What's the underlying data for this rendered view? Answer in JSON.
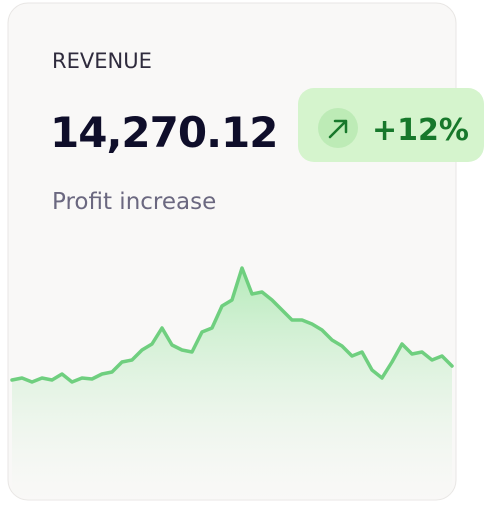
{
  "card": {
    "label": "REVENUE",
    "amount": "14,270.12",
    "subtitle": "Profit increase",
    "badge": "+12%",
    "sparkline": {
      "values": [
        20,
        22,
        18,
        22,
        20,
        26,
        18,
        22,
        21,
        26,
        28,
        38,
        40,
        50,
        56,
        72,
        55,
        50,
        48,
        68,
        72,
        94,
        100,
        132,
        106,
        108,
        100,
        90,
        80,
        80,
        76,
        70,
        60,
        54,
        44,
        48,
        30,
        22,
        38,
        56,
        46,
        48,
        40,
        44,
        34
      ],
      "color": "#6fcf7f"
    }
  }
}
